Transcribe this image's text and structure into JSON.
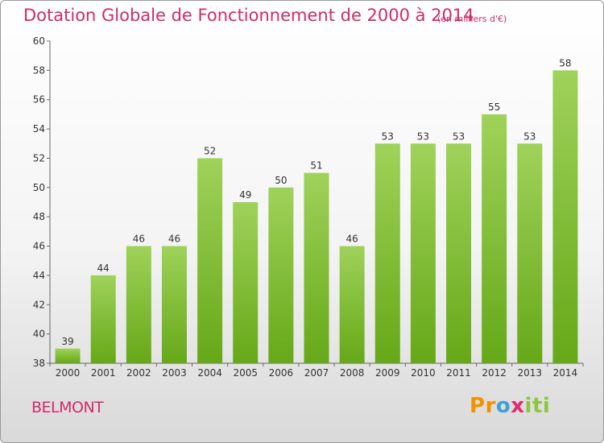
{
  "title": "Dotation Globale de Fonctionnement de 2000 à 2014",
  "unit_note": "(en milliers d'€)",
  "commune": "BELMONT",
  "logo": {
    "letters": [
      "P",
      "r",
      "o",
      "x",
      "i",
      "t",
      "i"
    ],
    "colors": [
      "#f39200",
      "#f39200",
      "#3fa0d8",
      "#e52a6f",
      "#8dc63f",
      "#8dc63f",
      "#8dc63f"
    ]
  },
  "colors": {
    "text_accent": "#d22a6a",
    "bar_top": "#9fd25a",
    "bar_bottom": "#66a818"
  },
  "chart_data": {
    "type": "bar",
    "categories": [
      "2000",
      "2001",
      "2002",
      "2003",
      "2004",
      "2005",
      "2006",
      "2007",
      "2008",
      "2009",
      "2010",
      "2011",
      "2012",
      "2013",
      "2014"
    ],
    "values": [
      39,
      44,
      46,
      46,
      52,
      49,
      50,
      51,
      46,
      53,
      53,
      53,
      55,
      53,
      58
    ],
    "value_labels": [
      "39",
      "44",
      "46",
      "46",
      "52",
      "49",
      "50",
      "51",
      "46",
      "53",
      "53",
      "53",
      "55",
      "53",
      "58"
    ],
    "ylim": [
      38,
      60
    ],
    "yticks": [
      "38",
      "40",
      "42",
      "44",
      "46",
      "48",
      "50",
      "52",
      "54",
      "56",
      "58",
      "60"
    ],
    "grid": false,
    "xlabel": "",
    "ylabel": ""
  }
}
